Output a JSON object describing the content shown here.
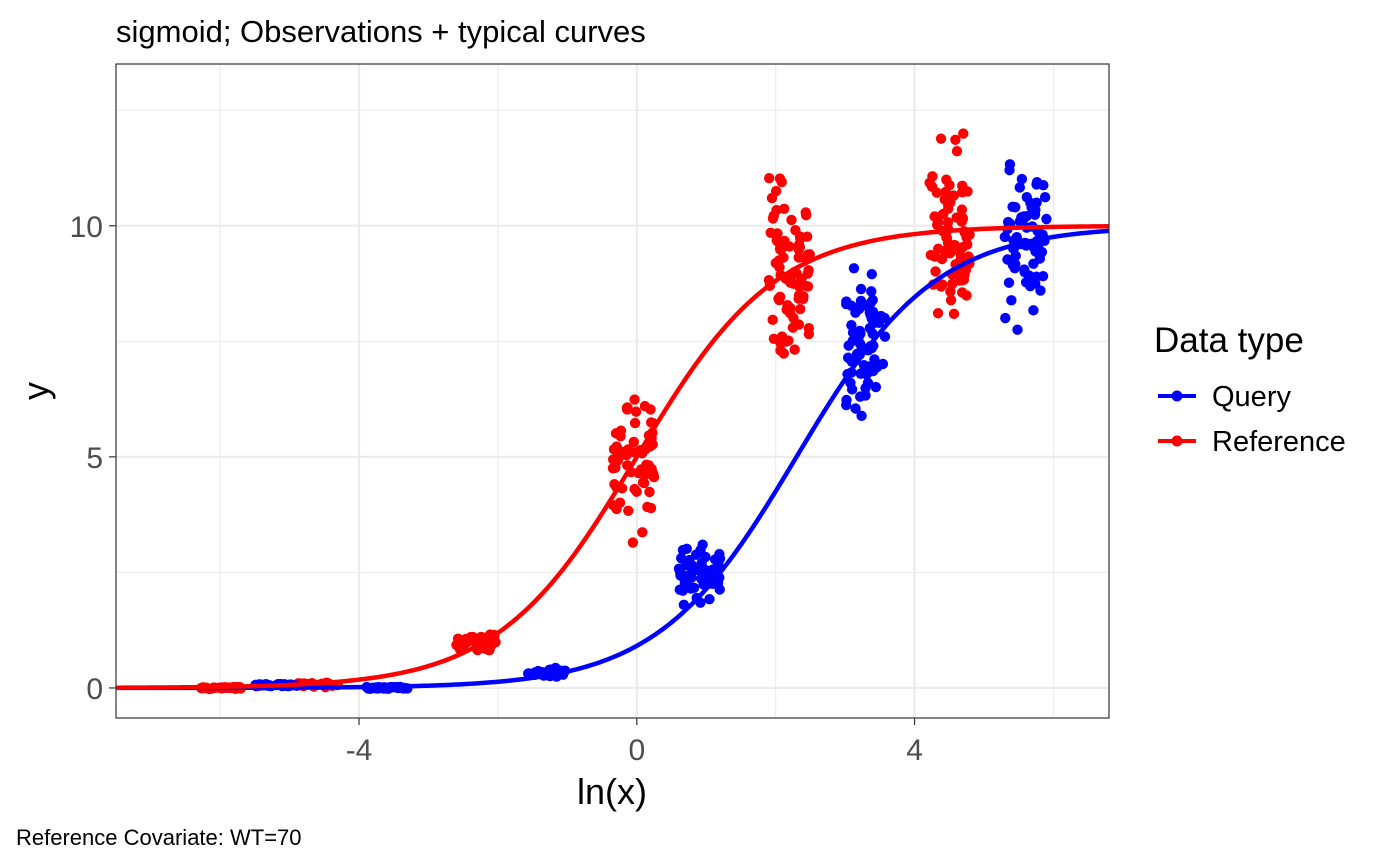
{
  "chart_data": {
    "type": "scatter",
    "title": "sigmoid; Observations + typical curves",
    "xlabel": "ln(x)",
    "ylabel": "y",
    "caption": "Reference Covariate: WT=70",
    "xlim": [
      -7.5,
      6.8
    ],
    "ylim": [
      -0.65,
      13.5
    ],
    "x_ticks": [
      -4,
      0,
      4
    ],
    "y_ticks": [
      0,
      5,
      10
    ],
    "grid": true,
    "legend": {
      "title": "Data type",
      "placement": "right",
      "entries": [
        "Query",
        "Reference"
      ]
    },
    "series": [
      {
        "name": "Query",
        "color": "#0000ff",
        "curve": {
          "emax": 10,
          "ec50_log": 2.3,
          "hill": 1
        },
        "clusters": [
          {
            "x_center": -5.2,
            "x_spread": 0.3,
            "y_center": 0.06,
            "y_spread": 0.05,
            "n": 30
          },
          {
            "x_center": -3.6,
            "x_spread": 0.3,
            "y_center": 0.0,
            "y_spread": 0.05,
            "n": 30
          },
          {
            "x_center": -1.3,
            "x_spread": 0.3,
            "y_center": 0.32,
            "y_spread": 0.2,
            "n": 30
          },
          {
            "x_center": 0.9,
            "x_spread": 0.3,
            "y_center": 2.5,
            "y_spread": 1.0,
            "n": 60
          },
          {
            "x_center": 3.3,
            "x_spread": 0.3,
            "y_center": 7.5,
            "y_spread": 2.4,
            "n": 70
          },
          {
            "x_center": 5.6,
            "x_spread": 0.3,
            "y_center": 9.8,
            "y_spread": 3.2,
            "n": 70
          }
        ]
      },
      {
        "name": "Reference",
        "color": "#ff0000",
        "curve": {
          "emax": 10,
          "ec50_log": 0.0,
          "hill": 1
        },
        "clusters": [
          {
            "x_center": -6.0,
            "x_spread": 0.3,
            "y_center": 0.0,
            "y_spread": 0.05,
            "n": 30
          },
          {
            "x_center": -4.6,
            "x_spread": 0.3,
            "y_center": 0.07,
            "y_spread": 0.1,
            "n": 30
          },
          {
            "x_center": -2.3,
            "x_spread": 0.3,
            "y_center": 0.95,
            "y_spread": 0.5,
            "n": 40
          },
          {
            "x_center": -0.05,
            "x_spread": 0.3,
            "y_center": 5.0,
            "y_spread": 2.4,
            "n": 70
          },
          {
            "x_center": 2.2,
            "x_spread": 0.3,
            "y_center": 9.1,
            "y_spread": 3.6,
            "n": 80
          },
          {
            "x_center": 4.5,
            "x_spread": 0.3,
            "y_center": 9.8,
            "y_spread": 3.5,
            "n": 80
          }
        ]
      }
    ]
  }
}
